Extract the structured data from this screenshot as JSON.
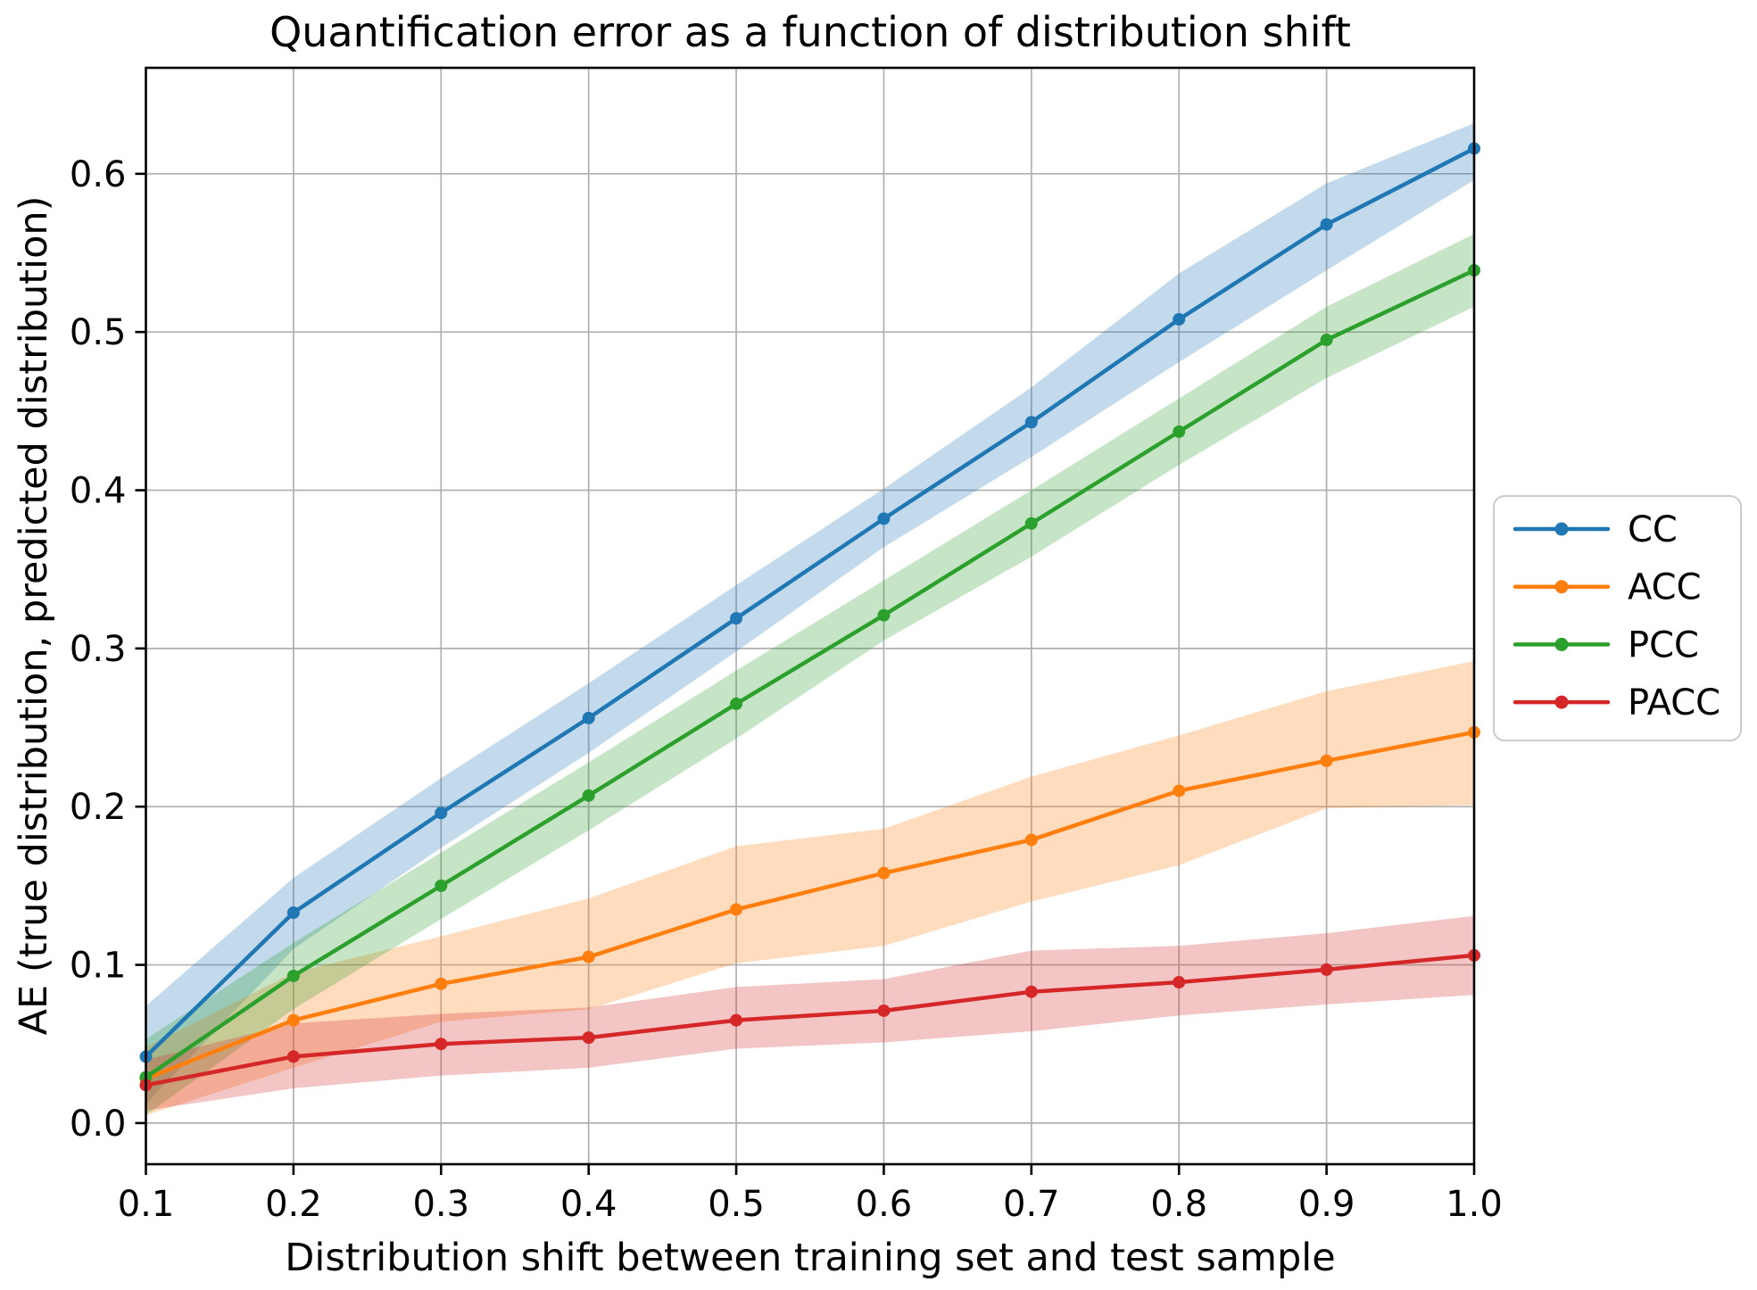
{
  "chart_data": {
    "type": "line",
    "title": "Quantification error as a function of distribution shift",
    "xlabel": "Distribution shift between training set and test sample",
    "ylabel": "AE (true distribution, predicted distribution)",
    "x": [
      0.1,
      0.2,
      0.3,
      0.4,
      0.5,
      0.6,
      0.7,
      0.8,
      0.9,
      1.0
    ],
    "x_tick_labels": [
      "0.1",
      "0.2",
      "0.3",
      "0.4",
      "0.5",
      "0.6",
      "0.7",
      "0.8",
      "0.9",
      "1.0"
    ],
    "y_ticks": [
      0.0,
      0.1,
      0.2,
      0.3,
      0.4,
      0.5,
      0.6
    ],
    "y_tick_labels": [
      "0.0",
      "0.1",
      "0.2",
      "0.3",
      "0.4",
      "0.5",
      "0.6"
    ],
    "xlim": [
      0.1,
      1.0
    ],
    "ylim": [
      -0.026,
      0.667
    ],
    "grid": true,
    "grid_color": "#b0b0b0",
    "band_opacity": 0.27,
    "legend_position": "right-outside",
    "series": [
      {
        "name": "CC",
        "color": "#1f77b4",
        "values": [
          0.042,
          0.133,
          0.196,
          0.256,
          0.319,
          0.382,
          0.443,
          0.508,
          0.568,
          0.616
        ],
        "band_lower": [
          0.012,
          0.11,
          0.174,
          0.234,
          0.298,
          0.364,
          0.421,
          0.481,
          0.539,
          0.596
        ],
        "band_upper": [
          0.074,
          0.155,
          0.218,
          0.278,
          0.34,
          0.401,
          0.465,
          0.537,
          0.594,
          0.632
        ]
      },
      {
        "name": "ACC",
        "color": "#ff7f0e",
        "values": [
          0.028,
          0.065,
          0.088,
          0.105,
          0.135,
          0.158,
          0.179,
          0.21,
          0.229,
          0.247
        ],
        "band_lower": [
          0.005,
          0.035,
          0.064,
          0.072,
          0.101,
          0.112,
          0.14,
          0.163,
          0.199,
          0.201
        ],
        "band_upper": [
          0.048,
          0.095,
          0.118,
          0.142,
          0.175,
          0.186,
          0.219,
          0.245,
          0.273,
          0.292
        ]
      },
      {
        "name": "PCC",
        "color": "#2ca02c",
        "values": [
          0.029,
          0.093,
          0.15,
          0.207,
          0.265,
          0.321,
          0.379,
          0.437,
          0.495,
          0.539
        ],
        "band_lower": [
          0.005,
          0.072,
          0.129,
          0.185,
          0.243,
          0.305,
          0.358,
          0.416,
          0.471,
          0.516
        ],
        "band_upper": [
          0.053,
          0.114,
          0.171,
          0.228,
          0.286,
          0.343,
          0.4,
          0.458,
          0.516,
          0.562
        ]
      },
      {
        "name": "PACC",
        "color": "#d62728",
        "values": [
          0.024,
          0.042,
          0.05,
          0.054,
          0.065,
          0.071,
          0.083,
          0.089,
          0.097,
          0.106
        ],
        "band_lower": [
          0.008,
          0.022,
          0.03,
          0.035,
          0.047,
          0.051,
          0.058,
          0.068,
          0.075,
          0.081
        ],
        "band_upper": [
          0.04,
          0.063,
          0.069,
          0.073,
          0.086,
          0.091,
          0.109,
          0.112,
          0.12,
          0.131
        ]
      }
    ]
  }
}
